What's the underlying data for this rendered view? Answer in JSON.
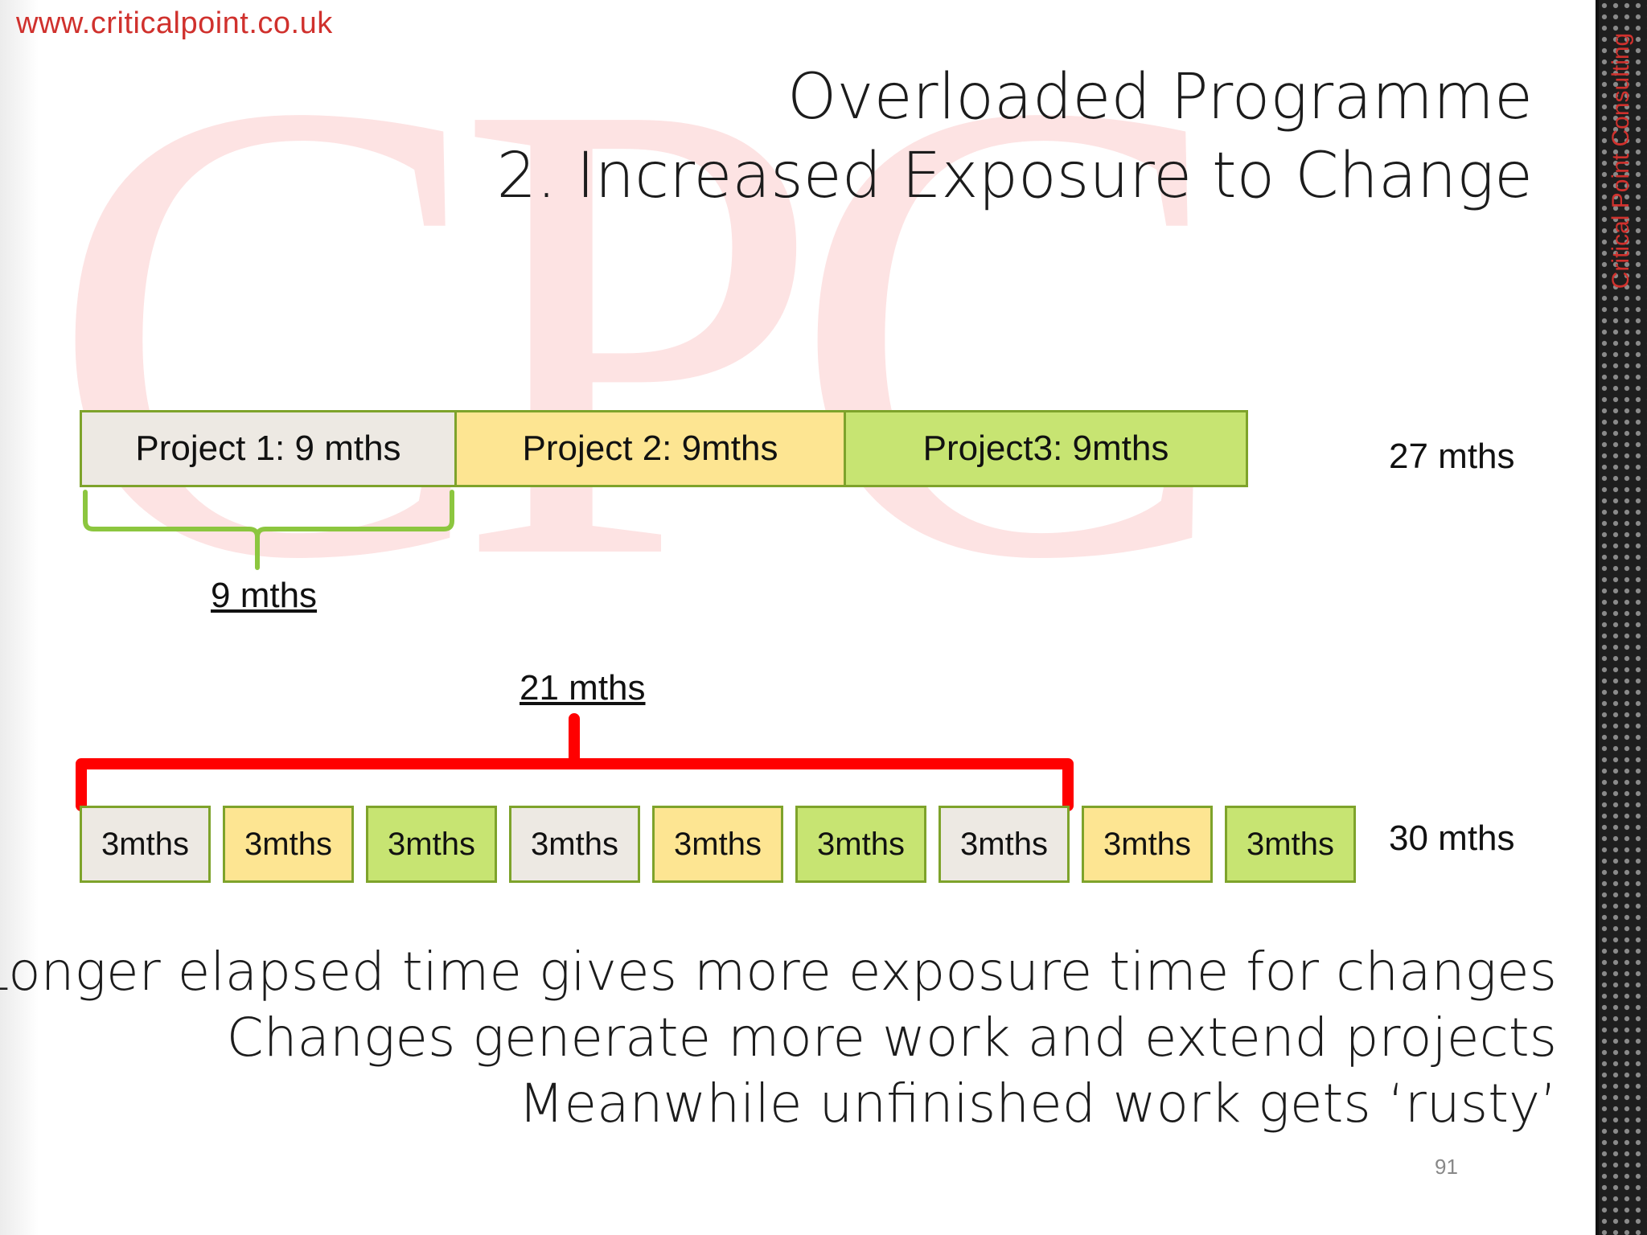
{
  "site_url": "www.criticalpoint.co.uk",
  "watermark_text": "CPC",
  "vertical_brand": "Critical Point Consulting",
  "title": {
    "line1": "Overloaded Programme",
    "line2": "2. Increased Exposure to Change"
  },
  "sequential": {
    "segments": [
      {
        "label": "Project 1: 9 mths",
        "months": 9,
        "color": "#ede9e3"
      },
      {
        "label": "Project 2: 9mths",
        "months": 9,
        "color": "#fde592"
      },
      {
        "label": "Project3: 9mths",
        "months": 9,
        "color": "#c7e472"
      }
    ],
    "total_label": "27 mths",
    "brace_label": "9 mths",
    "brace_color": "#8cc63f"
  },
  "interleaved": {
    "blocks": [
      {
        "label": "3mths",
        "color": "#ede9e3"
      },
      {
        "label": "3mths",
        "color": "#fde592"
      },
      {
        "label": "3mths",
        "color": "#c7e472"
      },
      {
        "label": "3mths",
        "color": "#ede9e3"
      },
      {
        "label": "3mths",
        "color": "#fde592"
      },
      {
        "label": "3mths",
        "color": "#c7e472"
      },
      {
        "label": "3mths",
        "color": "#ede9e3"
      },
      {
        "label": "3mths",
        "color": "#fde592"
      },
      {
        "label": "3mths",
        "color": "#c7e472"
      }
    ],
    "total_label": "30 mths",
    "brace_label": "21 mths",
    "brace_color": "#ff0000"
  },
  "bullets": [
    "Longer elapsed time gives more exposure time for changes",
    "Changes generate more work and extend projects",
    "Meanwhile unfinished work gets ‘rusty’"
  ],
  "page_number": "91"
}
